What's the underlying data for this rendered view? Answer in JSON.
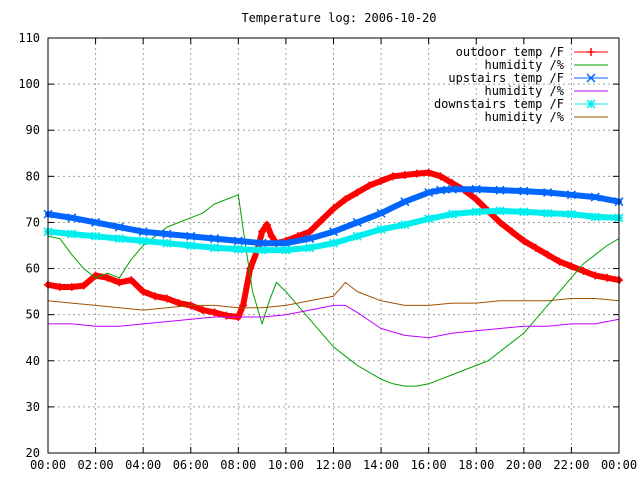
{
  "chart_data": {
    "type": "line",
    "title": "Temperature log: 2006-10-20",
    "xlabel": "",
    "ylabel": "",
    "xlim": [
      0,
      24
    ],
    "ylim": [
      20,
      110
    ],
    "grid": true,
    "legend_position": "top-right",
    "x_tick_labels": [
      "00:00",
      "02:00",
      "04:00",
      "06:00",
      "08:00",
      "10:00",
      "12:00",
      "14:00",
      "16:00",
      "18:00",
      "20:00",
      "22:00",
      "00:00"
    ],
    "y_tick_labels": [
      "20",
      "30",
      "40",
      "50",
      "60",
      "70",
      "80",
      "90",
      "100",
      "110"
    ],
    "series": [
      {
        "name": "outdoor temp /F",
        "color": "#ff0000",
        "marker": "plus",
        "x": [
          0,
          0.5,
          1,
          1.5,
          2,
          2.5,
          3,
          3.5,
          4,
          4.5,
          5,
          5.5,
          6,
          6.5,
          7,
          7.5,
          8,
          8.2,
          8.5,
          8.8,
          9,
          9.2,
          9.4,
          9.6,
          10,
          10.5,
          11,
          11.5,
          12,
          12.5,
          13,
          13.5,
          14,
          14.5,
          15,
          15.5,
          16,
          16.5,
          17,
          17.5,
          18,
          18.5,
          19,
          19.5,
          20,
          20.5,
          21,
          21.5,
          22,
          22.5,
          23,
          23.5,
          24
        ],
        "y": [
          56.5,
          56,
          56,
          56.3,
          58.5,
          58,
          57,
          57.5,
          55,
          54,
          53.5,
          52.5,
          52,
          51,
          50.5,
          49.8,
          49.5,
          52,
          60,
          64,
          68,
          69.5,
          67,
          65.5,
          66,
          67,
          68,
          70.5,
          73,
          75,
          76.5,
          78,
          79,
          80,
          80.3,
          80.6,
          80.8,
          80,
          78.5,
          77,
          75,
          72.5,
          70,
          68,
          66,
          64.5,
          63,
          61.5,
          60.5,
          59.5,
          58.5,
          58,
          57.5
        ]
      },
      {
        "name": "humidity /%",
        "color": "#00a000",
        "marker": "none",
        "x": [
          0,
          0.5,
          1,
          1.5,
          2,
          2.5,
          3,
          3.5,
          4,
          4.5,
          5,
          5.5,
          6,
          6.5,
          7,
          7.5,
          8,
          8.3,
          8.6,
          9,
          9.3,
          9.6,
          10,
          10.5,
          11,
          11.5,
          12,
          12.5,
          13,
          13.5,
          14,
          14.5,
          15,
          15.5,
          16,
          16.5,
          17,
          17.5,
          18,
          18.5,
          19,
          19.5,
          20,
          20.5,
          21,
          21.5,
          22,
          22.5,
          23,
          23.5,
          24
        ],
        "y": [
          67,
          66.5,
          63,
          60,
          58,
          59,
          58,
          62,
          65,
          67,
          69,
          70,
          71,
          72,
          74,
          75,
          76,
          65,
          55,
          48,
          53,
          57,
          55,
          52,
          49,
          46,
          43,
          41,
          39,
          37.5,
          36,
          35,
          34.5,
          34.5,
          35,
          36,
          37,
          38,
          39,
          40,
          42,
          44,
          46,
          49,
          52,
          55,
          58,
          61,
          63,
          65,
          66.5
        ]
      },
      {
        "name": "upstairs temp /F",
        "color": "#0066ff",
        "marker": "cross",
        "x": [
          0,
          1,
          2,
          3,
          4,
          5,
          6,
          7,
          8,
          9,
          10,
          11,
          12,
          13,
          14,
          15,
          16,
          16.5,
          17,
          18,
          19,
          20,
          21,
          22,
          23,
          24
        ],
        "y": [
          71.8,
          71,
          70,
          69,
          68,
          67.5,
          67,
          66.5,
          66,
          65.5,
          65.5,
          66.5,
          68,
          70,
          72,
          74.5,
          76.5,
          77,
          77.2,
          77.2,
          77,
          76.8,
          76.5,
          76,
          75.5,
          74.5
        ]
      },
      {
        "name": "humidity /%",
        "color": "#c000ff",
        "marker": "none",
        "x": [
          0,
          1,
          2,
          3,
          4,
          5,
          6,
          7,
          8,
          9,
          10,
          11,
          12,
          12.5,
          13,
          14,
          15,
          16,
          17,
          18,
          19,
          20,
          21,
          22,
          23,
          24
        ],
        "y": [
          48,
          48,
          47.5,
          47.5,
          48,
          48.5,
          49,
          49.5,
          49.5,
          49.5,
          50,
          51,
          52,
          52,
          50.5,
          47,
          45.5,
          45,
          46,
          46.5,
          47,
          47.5,
          47.5,
          48,
          48,
          49
        ]
      },
      {
        "name": "downstairs temp /F",
        "color": "#00eeee",
        "marker": "star",
        "x": [
          0,
          1,
          2,
          3,
          4,
          5,
          6,
          7,
          8,
          9,
          10,
          11,
          12,
          13,
          14,
          15,
          16,
          17,
          18,
          19,
          20,
          21,
          22,
          23,
          24
        ],
        "y": [
          68,
          67.5,
          67,
          66.5,
          66,
          65.5,
          65,
          64.5,
          64.2,
          64,
          64,
          64.5,
          65.5,
          67,
          68.5,
          69.5,
          70.8,
          71.8,
          72.3,
          72.5,
          72.3,
          72,
          71.8,
          71.2,
          71
        ]
      },
      {
        "name": "humidity /%",
        "color": "#a05000",
        "marker": "none",
        "x": [
          0,
          1,
          2,
          3,
          4,
          5,
          6,
          7,
          8,
          9,
          10,
          11,
          12,
          12.5,
          13,
          14,
          15,
          16,
          17,
          18,
          19,
          20,
          21,
          22,
          23,
          24
        ],
        "y": [
          53,
          52.5,
          52,
          51.5,
          51,
          51.5,
          52,
          52,
          51.5,
          51.5,
          52,
          53,
          54,
          57,
          55,
          53,
          52,
          52,
          52.5,
          52.5,
          53,
          53,
          53,
          53.5,
          53.5,
          53
        ]
      }
    ]
  }
}
